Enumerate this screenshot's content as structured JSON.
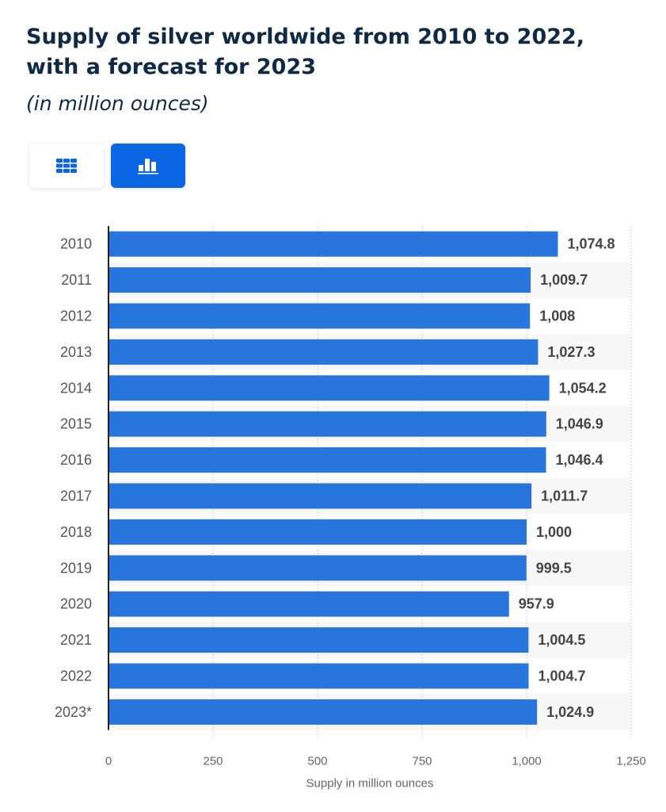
{
  "title": "Supply of silver worldwide from 2010 to 2022, with a forecast for 2023",
  "subtitle": "(in million ounces)",
  "view_toggle": {
    "table_icon": "table-grid-icon",
    "chart_icon": "bar-chart-icon",
    "active": "chart"
  },
  "colors": {
    "bar": "#2876dd",
    "accent": "#0b66e4",
    "stripe": "#f7f7f7"
  },
  "chart_data": {
    "type": "bar",
    "orientation": "horizontal",
    "categories": [
      "2010",
      "2011",
      "2012",
      "2013",
      "2014",
      "2015",
      "2016",
      "2017",
      "2018",
      "2019",
      "2020",
      "2021",
      "2022",
      "2023*"
    ],
    "values": [
      1074.8,
      1009.7,
      1008,
      1027.3,
      1054.2,
      1046.9,
      1046.4,
      1011.7,
      1000,
      999.5,
      957.9,
      1004.5,
      1004.7,
      1024.9
    ],
    "value_labels": [
      "1,074.8",
      "1,009.7",
      "1,008",
      "1,027.3",
      "1,054.2",
      "1,046.9",
      "1,046.4",
      "1,011.7",
      "1,000",
      "999.5",
      "957.9",
      "1,004.5",
      "1,004.7",
      "1,024.9"
    ],
    "xlabel": "Supply in million ounces",
    "xlim": [
      0,
      1250
    ],
    "xticks": [
      0,
      250,
      500,
      750,
      1000,
      1250
    ],
    "xtick_labels": [
      "0",
      "250",
      "500",
      "750",
      "1,000",
      "1,250"
    ],
    "grid": true
  }
}
